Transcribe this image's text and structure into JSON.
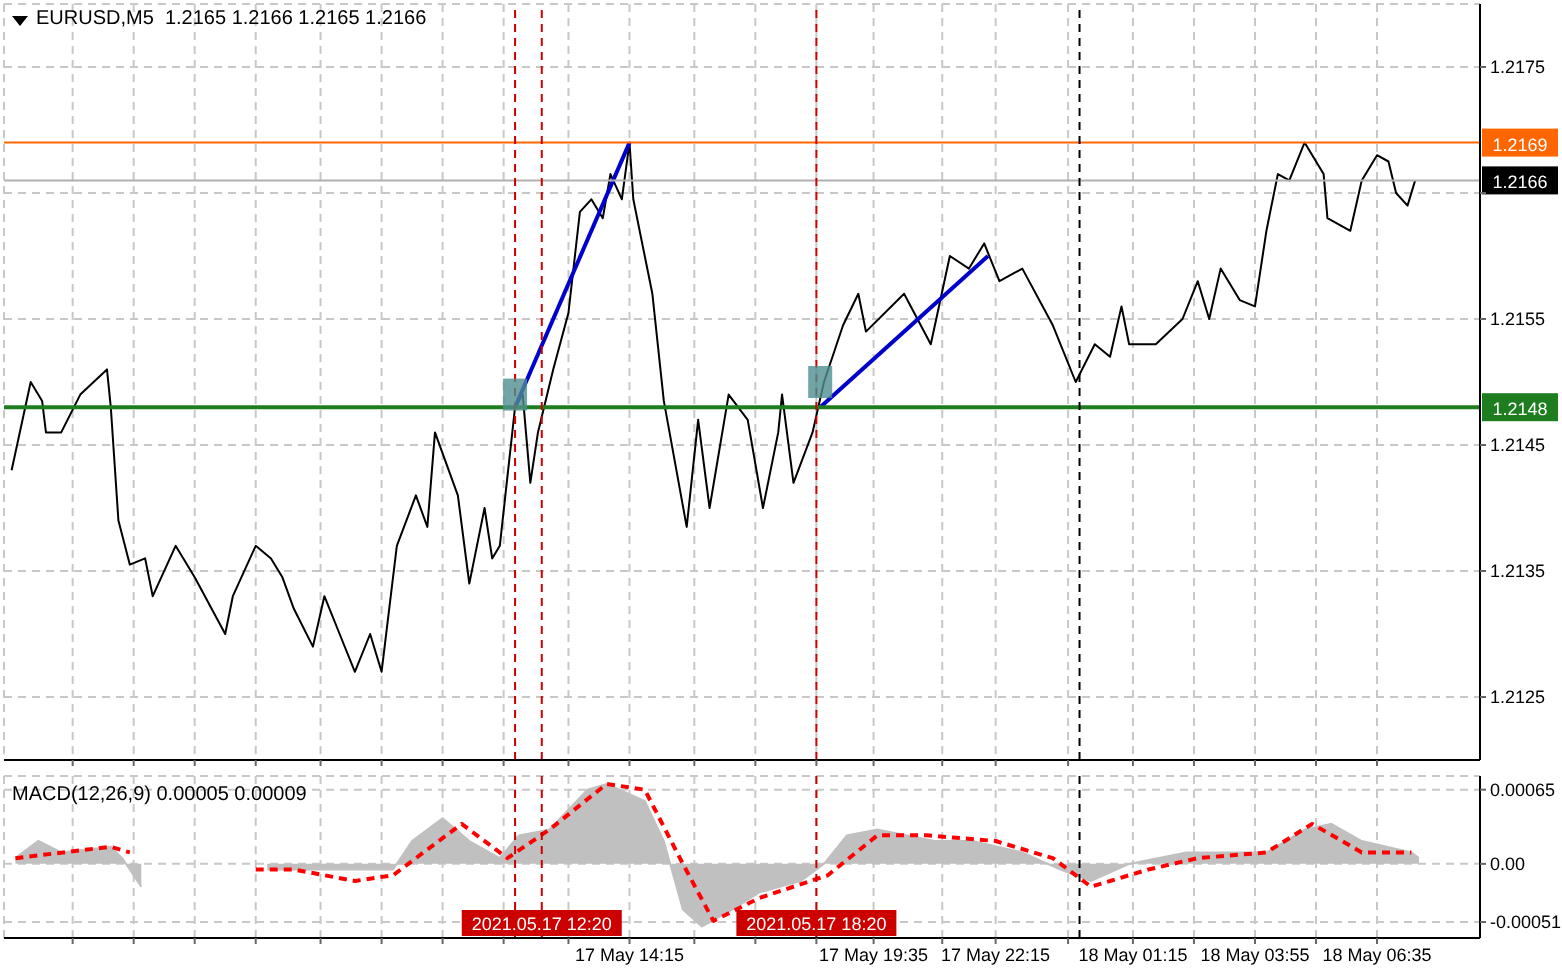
{
  "chart_data": [
    {
      "type": "line",
      "title": "EURUSD,M5  1.2165 1.2166 1.2165 1.2166",
      "tick_labels": "y",
      "grid": true,
      "xlim": [
        "2021-05-17T00:35",
        "2021-05-18T08:50"
      ],
      "ylim": [
        1.212,
        1.218
      ],
      "xticks": [
        {
          "value": "2021-05-17T02:05",
          "label": null
        },
        {
          "value": "2021-05-17T03:25",
          "label": null
        },
        {
          "value": "2021-05-17T04:45",
          "label": null
        },
        {
          "value": "2021-05-17T06:05",
          "label": null
        },
        {
          "value": "2021-05-17T07:30",
          "label": null
        },
        {
          "value": "2021-05-17T08:50",
          "label": null
        },
        {
          "value": "2021-05-17T10:10",
          "label": null
        },
        {
          "value": "2021-05-17T11:30",
          "label": null
        },
        {
          "value": "2021-05-17T12:55",
          "label": null
        },
        {
          "value": "2021-05-17T14:15",
          "label": null
        },
        {
          "value": "2021-05-17T15:40",
          "label": null
        },
        {
          "value": "2021-05-17T17:00",
          "label": null
        },
        {
          "value": "2021-05-17T18:20",
          "label": null
        },
        {
          "value": "2021-05-17T19:35",
          "label": null
        },
        {
          "value": "2021-05-17T21:05",
          "label": null
        },
        {
          "value": "2021-05-17T22:15",
          "label": null
        },
        {
          "value": "2021-05-17T23:50",
          "label": null
        },
        {
          "value": "2021-05-18T01:15",
          "label": null
        },
        {
          "value": "2021-05-18T02:35",
          "label": null
        },
        {
          "value": "2021-05-18T03:55",
          "label": null
        },
        {
          "value": "2021-05-18T05:15",
          "label": null
        },
        {
          "value": "2021-05-18T06:35",
          "label": null
        }
      ],
      "yticks": [
        1.2125,
        1.2135,
        1.2145,
        1.2155,
        {
          "value": 1.2165,
          "label": null
        },
        1.2175
      ],
      "ref_lines": [
        {
          "axis": "y",
          "value": 1.2169,
          "label": "1.2169",
          "color": "#ff6600"
        },
        {
          "axis": "y",
          "value": 1.2166,
          "label": "1.2166",
          "color": "#b0b0b0"
        },
        {
          "axis": "y",
          "value": 1.2148,
          "label": "1.2148",
          "color": "#1e7d1e"
        },
        {
          "axis": "x",
          "value": "2021-05-17T11:45",
          "color": "#cc0000",
          "line_style": "dashed"
        },
        {
          "axis": "x",
          "value": "2021-05-17T12:20",
          "color": "#cc0000",
          "line_style": "dashed"
        },
        {
          "axis": "x",
          "value": "2021-05-17T18:20",
          "color": "#cc0000",
          "line_style": "dashed"
        },
        {
          "axis": "x",
          "value": "2021-05-18T00:05",
          "color": "#000000",
          "line_style": "dashed"
        }
      ],
      "series": [
        {
          "type": "line",
          "color": "#000000",
          "marker": "none",
          "x": [
            "2021-05-17T00:45",
            "2021-05-17T01:10",
            "2021-05-17T01:25",
            "2021-05-17T01:30",
            "2021-05-17T01:50",
            "2021-05-17T02:15",
            "2021-05-17T02:50",
            "2021-05-17T02:55",
            "2021-05-17T03:05",
            "2021-05-17T03:20",
            "2021-05-17T03:40",
            "2021-05-17T03:50",
            "2021-05-17T04:20",
            "2021-05-17T04:45",
            "2021-05-17T05:25",
            "2021-05-17T05:35",
            "2021-05-17T06:05",
            "2021-05-17T06:25",
            "2021-05-17T06:40",
            "2021-05-17T06:55",
            "2021-05-17T07:20",
            "2021-05-17T07:35",
            "2021-05-17T07:55",
            "2021-05-17T08:15",
            "2021-05-17T08:35",
            "2021-05-17T08:50",
            "2021-05-17T09:10",
            "2021-05-17T09:35",
            "2021-05-17T09:50",
            "2021-05-17T10:00",
            "2021-05-17T10:30",
            "2021-05-17T10:45",
            "2021-05-17T11:05",
            "2021-05-17T11:15",
            "2021-05-17T11:25",
            "2021-05-17T11:45",
            "2021-05-17T11:55",
            "2021-05-17T12:05",
            "2021-05-17T12:15",
            "2021-05-17T12:35",
            "2021-05-17T12:55",
            "2021-05-17T13:10",
            "2021-05-17T13:25",
            "2021-05-17T13:40",
            "2021-05-17T13:50",
            "2021-05-17T14:05",
            "2021-05-17T14:15",
            "2021-05-17T14:20",
            "2021-05-17T14:45",
            "2021-05-17T15:00",
            "2021-05-17T15:30",
            "2021-05-17T15:45",
            "2021-05-17T16:00",
            "2021-05-17T16:25",
            "2021-05-17T16:50",
            "2021-05-17T17:10",
            "2021-05-17T17:30",
            "2021-05-17T17:35",
            "2021-05-17T17:50",
            "2021-05-17T18:15",
            "2021-05-17T18:30",
            "2021-05-17T18:55",
            "2021-05-17T19:15",
            "2021-05-17T19:25",
            "2021-05-17T20:15",
            "2021-05-17T20:50",
            "2021-05-17T21:15",
            "2021-05-17T21:40",
            "2021-05-17T22:00",
            "2021-05-17T22:20",
            "2021-05-17T22:50",
            "2021-05-17T23:30",
            "2021-05-18T00:00",
            "2021-05-18T00:25",
            "2021-05-18T00:45",
            "2021-05-18T01:00",
            "2021-05-18T01:10",
            "2021-05-18T01:45",
            "2021-05-18T02:20",
            "2021-05-18T02:40",
            "2021-05-18T02:55",
            "2021-05-18T03:10",
            "2021-05-18T03:35",
            "2021-05-18T03:55",
            "2021-05-18T04:10",
            "2021-05-18T04:25",
            "2021-05-18T04:40",
            "2021-05-18T05:00",
            "2021-05-18T05:25",
            "2021-05-18T05:30",
            "2021-05-18T06:00",
            "2021-05-18T06:15",
            "2021-05-18T06:35",
            "2021-05-18T06:50",
            "2021-05-18T07:00",
            "2021-05-18T07:15",
            "2021-05-18T07:25"
          ],
          "values": [
            1.2143,
            1.215,
            1.21485,
            1.2146,
            1.2146,
            1.2149,
            1.2151,
            1.2148,
            1.2139,
            1.21355,
            1.2136,
            1.2133,
            1.2137,
            1.21345,
            1.213,
            1.2133,
            1.2137,
            1.2136,
            1.21345,
            1.2132,
            1.2129,
            1.2133,
            1.213,
            1.2127,
            1.213,
            1.2127,
            1.2137,
            1.2141,
            1.21385,
            1.2146,
            1.2141,
            1.2134,
            1.214,
            1.2136,
            1.2137,
            1.2148,
            1.2149,
            1.2142,
            1.2146,
            1.2151,
            1.21555,
            1.21635,
            1.21645,
            1.2163,
            1.21665,
            1.21645,
            1.2169,
            1.21645,
            1.2157,
            1.21485,
            1.21385,
            1.2147,
            1.214,
            1.2149,
            1.2147,
            1.214,
            1.2146,
            1.2149,
            1.2142,
            1.2146,
            1.215,
            1.21545,
            1.2157,
            1.2154,
            1.2157,
            1.2153,
            1.216,
            1.2159,
            1.2161,
            1.2158,
            1.2159,
            1.21545,
            1.215,
            1.2153,
            1.2152,
            1.2156,
            1.2153,
            1.2153,
            1.2155,
            1.2158,
            1.2155,
            1.2159,
            1.21565,
            1.2156,
            1.2162,
            1.21665,
            1.2166,
            1.2169,
            1.21665,
            1.2163,
            1.2162,
            1.2166,
            1.2168,
            1.21675,
            1.2165,
            1.2164,
            1.2166
          ]
        },
        {
          "type": "line",
          "color": "#0000cc",
          "marker": "none",
          "x": [
            "2021-05-17T11:45",
            "2021-05-17T14:15"
          ],
          "values": [
            1.2148,
            1.2169
          ]
        },
        {
          "type": "line",
          "color": "#0000cc",
          "marker": "none",
          "x": [
            "2021-05-17T18:25",
            "2021-05-17T22:05"
          ],
          "values": [
            1.2148,
            1.216
          ]
        },
        {
          "type": "scatter",
          "color": "#4f8f8f",
          "marker": "square",
          "x": [
            "2021-05-17T11:45",
            "2021-05-17T18:25"
          ],
          "values": [
            1.2149,
            1.215
          ]
        }
      ]
    },
    {
      "type": "line",
      "title": "MACD(12,26,9) 0.00005 0.00009",
      "grid": true,
      "xlim": [
        "2021-05-17T00:35",
        "2021-05-18T08:50"
      ],
      "ylim": [
        -0.00065,
        0.00077
      ],
      "xticks": [
        {
          "value": "2021-05-17T02:05",
          "label": null
        },
        {
          "value": "2021-05-17T03:25",
          "label": null
        },
        {
          "value": "2021-05-17T04:45",
          "label": null
        },
        {
          "value": "2021-05-17T06:05",
          "label": null
        },
        {
          "value": "2021-05-17T07:30",
          "label": null
        },
        {
          "value": "2021-05-17T08:50",
          "label": null
        },
        {
          "value": "2021-05-17T10:10",
          "label": null
        },
        {
          "value": "2021-05-17T11:30",
          "label": null
        },
        {
          "value": "2021-05-17T12:55",
          "label": null
        },
        {
          "value": "2021-05-17T14:15",
          "label": "17 May 14:15"
        },
        {
          "value": "2021-05-17T15:40",
          "label": null
        },
        {
          "value": "2021-05-17T17:00",
          "label": null
        },
        {
          "value": "2021-05-17T18:20",
          "label": null
        },
        {
          "value": "2021-05-17T19:35",
          "label": "17 May 19:35"
        },
        {
          "value": "2021-05-17T21:05",
          "label": null
        },
        {
          "value": "2021-05-17T22:15",
          "label": "17 May 22:15"
        },
        {
          "value": "2021-05-17T23:50",
          "label": null
        },
        {
          "value": "2021-05-18T01:15",
          "label": "18 May 01:15"
        },
        {
          "value": "2021-05-18T02:35",
          "label": null
        },
        {
          "value": "2021-05-18T03:55",
          "label": "18 May 03:55"
        },
        {
          "value": "2021-05-18T05:15",
          "label": null
        },
        {
          "value": "2021-05-18T06:35",
          "label": "18 May 06:35"
        }
      ],
      "yticks": [
        0.00065,
        {
          "value": 0,
          "label": "0.00"
        },
        -0.00051
      ],
      "ref_lines": [
        {
          "axis": "x",
          "value": "2021-05-17T11:45",
          "color": "#cc0000",
          "line_style": "dashed"
        },
        {
          "axis": "x",
          "value": "2021-05-17T12:20",
          "label": "2021.05.17 12:20",
          "color": "#cc0000",
          "line_style": "dashed"
        },
        {
          "axis": "x",
          "value": "2021-05-17T18:20",
          "label": "2021.05.17 18:20",
          "color": "#cc0000",
          "line_style": "dashed"
        },
        {
          "axis": "x",
          "value": "2021-05-18T00:05",
          "color": "#000000",
          "line_style": "dashed"
        }
      ],
      "series": [
        {
          "type": "area",
          "color": "#c0c0c0",
          "x": [
            "2021-05-17T00:50",
            "2021-05-17T01:20",
            "2021-05-17T01:50",
            "2021-05-17T02:55",
            "2021-05-17T03:10",
            "2021-05-17T03:35",
            "2021-05-17T04:30",
            "2021-05-17T06:20",
            "2021-05-17T07:35",
            "2021-05-17T09:05",
            "2021-05-17T09:30",
            "2021-05-17T10:10",
            "2021-05-17T10:45",
            "2021-05-17T11:25",
            "2021-05-17T11:50",
            "2021-05-17T12:30",
            "2021-05-17T13:20",
            "2021-05-17T13:45",
            "2021-05-17T14:35",
            "2021-05-17T15:00",
            "2021-05-17T15:25",
            "2021-05-17T15:50",
            "2021-05-17T16:30",
            "2021-05-17T17:05",
            "2021-05-17T18:00",
            "2021-05-17T18:30",
            "2021-05-17T19:00",
            "2021-05-17T19:40",
            "2021-05-17T20:55",
            "2021-05-17T21:45",
            "2021-05-17T22:50",
            "2021-05-17T23:40",
            "2021-05-18T00:20",
            "2021-05-18T01:10",
            "2021-05-18T02:25",
            "2021-05-18T03:15",
            "2021-05-18T04:10",
            "2021-05-18T05:00",
            "2021-05-18T05:35",
            "2021-05-18T06:15",
            "2021-05-18T07:20",
            "2021-05-18T07:30"
          ],
          "values": [
            5e-05,
            0.0002,
            0.0001,
            0.00015,
            5e-05,
            -0.0002,
            null,
            -5e-05,
            -5e-05,
            -5e-05,
            0.0002,
            0.0004,
            0.0002,
            5e-05,
            0.00025,
            0.0003,
            0.00065,
            0.0007,
            0.00055,
            0.0002,
            -0.0004,
            -0.00055,
            -0.0004,
            -0.00025,
            -0.00015,
            0,
            0.00025,
            0.0003,
            0.0002,
            0.0002,
            0.0001,
            -5e-05,
            -0.00015,
            0,
            0.0001,
            0.0001,
            0.0001,
            0.0003,
            0.00035,
            0.0002,
            0.0001,
            5e-05
          ]
        },
        {
          "type": "line",
          "color": "#ff0000",
          "line_style": "dashed",
          "marker": "none",
          "x": [
            "2021-05-17T00:50",
            "2021-05-17T02:55",
            "2021-05-17T03:20",
            "2021-05-17T04:50",
            "2021-05-17T06:05",
            "2021-05-17T06:55",
            "2021-05-17T08:15",
            "2021-05-17T09:05",
            "2021-05-17T10:35",
            "2021-05-17T11:35",
            "2021-05-17T12:30",
            "2021-05-17T13:45",
            "2021-05-17T14:35",
            "2021-05-17T15:25",
            "2021-05-17T16:05",
            "2021-05-17T17:05",
            "2021-05-17T18:35",
            "2021-05-17T19:40",
            "2021-05-17T20:45",
            "2021-05-17T22:15",
            "2021-05-17T23:30",
            "2021-05-18T00:20",
            "2021-05-18T01:35",
            "2021-05-18T02:40",
            "2021-05-18T04:10",
            "2021-05-18T05:10",
            "2021-05-18T06:15",
            "2021-05-18T07:20"
          ],
          "values": [
            5e-05,
            0.00015,
            0.0001,
            null,
            -5e-05,
            -5e-05,
            -0.00015,
            -0.0001,
            0.00035,
            5e-05,
            0.0003,
            0.0007,
            0.00065,
            0,
            -0.0005,
            -0.0003,
            -0.0001,
            0.00025,
            0.00025,
            0.0002,
            5e-05,
            -0.0002,
            -5e-05,
            5e-05,
            0.0001,
            0.00035,
            0.0001,
            0.0001
          ]
        }
      ]
    }
  ]
}
